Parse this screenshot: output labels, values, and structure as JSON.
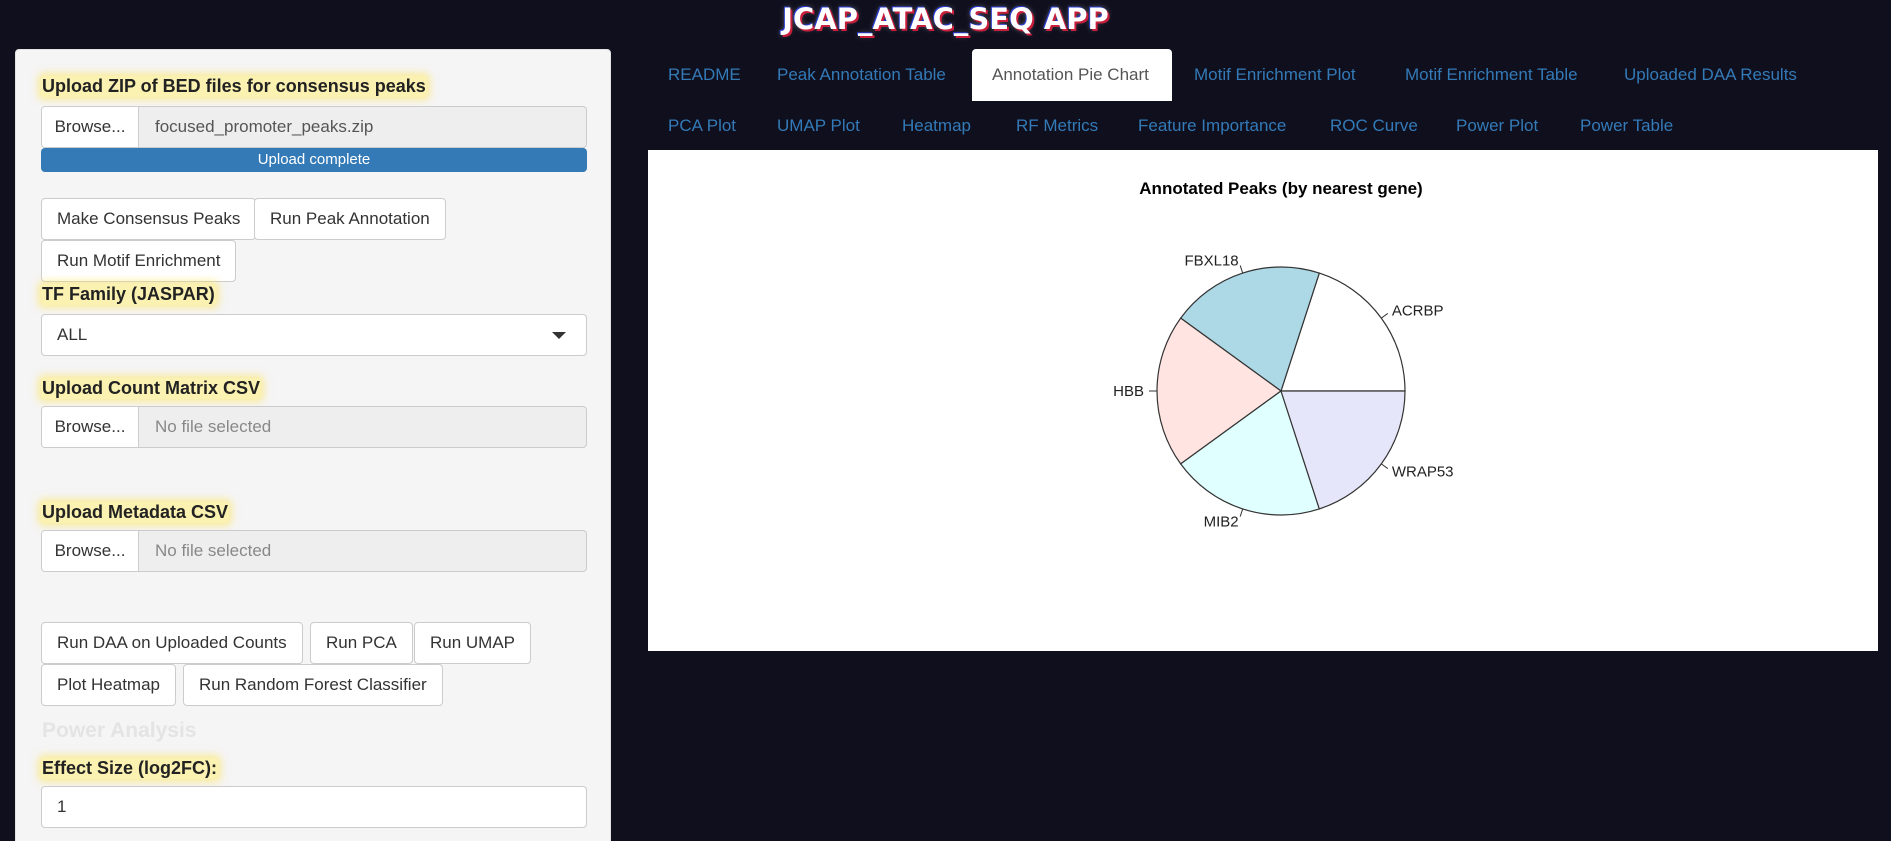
{
  "app": {
    "title": "JCAP_ATAC_SEQ APP"
  },
  "sidebar": {
    "zip_label": "Upload ZIP of BED files for consensus peaks",
    "zip_browse": "Browse...",
    "zip_file": "focused_promoter_peaks.zip",
    "zip_progress": "Upload complete",
    "zip_progress_fraction": 1.0,
    "btn_consensus": "Make Consensus Peaks",
    "btn_annotation": "Run Peak Annotation",
    "btn_motif": "Run Motif Enrichment",
    "tf_label": "TF Family (JASPAR)",
    "tf_value": "ALL",
    "count_label": "Upload Count Matrix CSV",
    "count_browse": "Browse...",
    "count_file": "No file selected",
    "meta_label": "Upload Metadata CSV",
    "meta_browse": "Browse...",
    "meta_file": "No file selected",
    "btn_daa": "Run DAA on Uploaded Counts",
    "btn_pca": "Run PCA",
    "btn_umap": "Run UMAP",
    "btn_heatmap": "Plot Heatmap",
    "btn_rf": "Run Random Forest Classifier",
    "power_heading": "Power Analysis",
    "effect_label": "Effect Size (log2FC):",
    "effect_value": "1"
  },
  "tabs": [
    {
      "label": "README"
    },
    {
      "label": "Peak Annotation Table"
    },
    {
      "label": "Annotation Pie Chart"
    },
    {
      "label": "Motif Enrichment Plot"
    },
    {
      "label": "Motif Enrichment Table"
    },
    {
      "label": "Uploaded DAA Results"
    },
    {
      "label": "PCA Plot"
    },
    {
      "label": "UMAP Plot"
    },
    {
      "label": "Heatmap"
    },
    {
      "label": "RF Metrics"
    },
    {
      "label": "Feature Importance"
    },
    {
      "label": "ROC Curve"
    },
    {
      "label": "Power Plot"
    },
    {
      "label": "Power Table"
    }
  ],
  "active_tab": "Annotation Pie Chart",
  "chart_data": {
    "type": "pie",
    "title": "Annotated Peaks (by nearest gene)",
    "categories": [
      "ACRBP",
      "FBXL18",
      "HBB",
      "MIB2",
      "WRAP53"
    ],
    "values": [
      1,
      1,
      1,
      1,
      1
    ],
    "colors": [
      "#ffffff",
      "#add8e6",
      "#ffe4e1",
      "#e0ffff",
      "#e6e6fa"
    ]
  }
}
